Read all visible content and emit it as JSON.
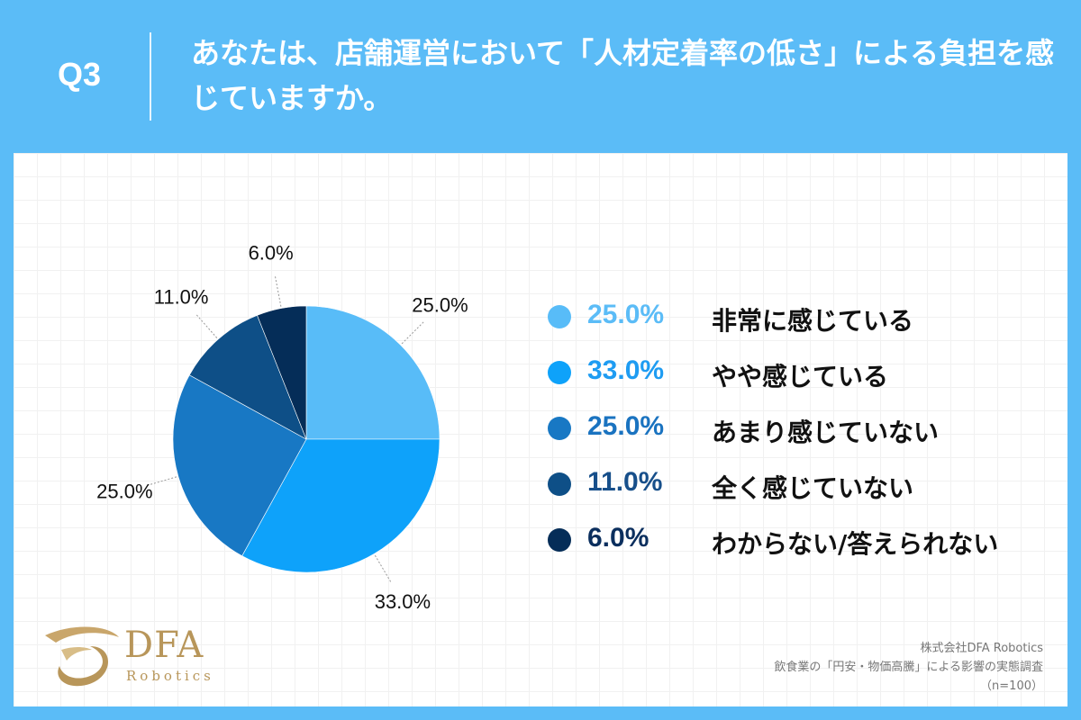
{
  "header": {
    "q_label": "Q3",
    "title": "あなたは、店舗運営において「人材定着率の低さ」による負担を感じていますか。"
  },
  "chart_data": {
    "type": "pie",
    "title": "",
    "categories": [
      "非常に感じている",
      "やや感じている",
      "あまり感じていない",
      "全く感じていない",
      "わからない/答えられない"
    ],
    "values": [
      25.0,
      33.0,
      25.0,
      11.0,
      6.0
    ],
    "value_labels": [
      "25.0%",
      "33.0%",
      "25.0%",
      "11.0%",
      "6.0%"
    ],
    "colors": [
      "#58bcf8",
      "#0ea2fa",
      "#1878c4",
      "#0e4f87",
      "#052d58"
    ],
    "legend_pct_colors": [
      "#5bbcf7",
      "#1e9cf2",
      "#1a73c0",
      "#174f8a",
      "#0b2f5e"
    ],
    "start_angle": "12 o'clock",
    "direction": "clockwise",
    "legend_position": "right"
  },
  "logo": {
    "main": "DFA",
    "sub": "Robotics"
  },
  "source": {
    "company": "株式会社DFA Robotics",
    "survey": "飲食業の「円安・物価高騰」による影響の実態調査",
    "sample": "（n=100）"
  }
}
